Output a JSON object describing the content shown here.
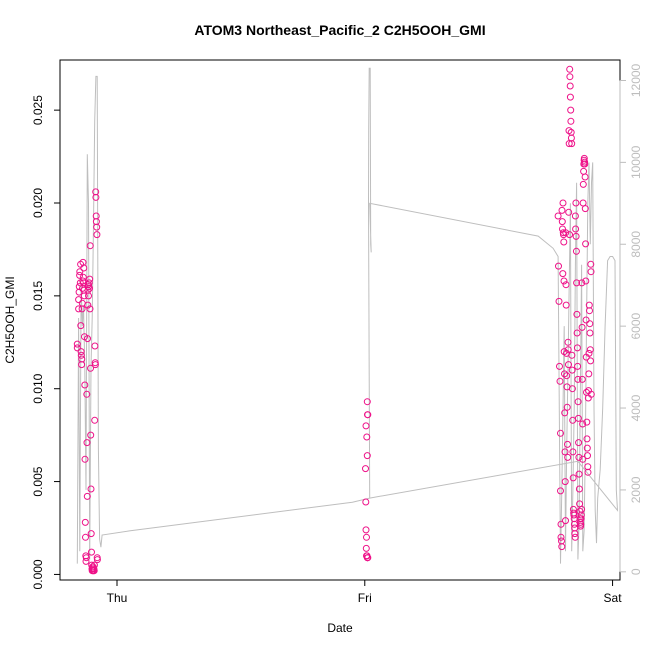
{
  "chart_data": {
    "type": "scatter",
    "title": "ATOM3 Northeast_Pacific_2 C2H5OOH_GMI",
    "xlabel": "Date",
    "ylabel": "C2H5OOH_GMI",
    "x_ticks": [
      "Thu",
      "Fri",
      "Sat"
    ],
    "x_tick_values": [
      0,
      1,
      2
    ],
    "xlim": [
      -0.23,
      2.03
    ],
    "ylim": [
      -0.0003,
      0.0277
    ],
    "y_ticks": [
      0.0,
      0.005,
      0.01,
      0.015,
      0.02,
      0.025
    ],
    "y_tick_labels": [
      "0.000",
      "0.005",
      "0.010",
      "0.015",
      "0.020",
      "0.025"
    ],
    "y2_ticks": [
      0,
      2000,
      4000,
      6000,
      8000,
      10000,
      12000
    ],
    "y2_tick_labels": [
      "0",
      "2000",
      "4000",
      "6000",
      "8000",
      "10000",
      "12000"
    ],
    "y2lim": [
      -200,
      12500
    ],
    "point_color": "#ee1289",
    "line_color": "#bebebe",
    "grid": false,
    "series": [
      {
        "values": [
          [
            -0.16,
            0.0122
          ],
          [
            -0.16,
            0.0124
          ],
          [
            -0.155,
            0.0143
          ],
          [
            -0.155,
            0.0148
          ],
          [
            -0.153,
            0.0152
          ],
          [
            -0.152,
            0.0155
          ],
          [
            -0.151,
            0.0161
          ],
          [
            -0.15,
            0.0163
          ],
          [
            -0.148,
            0.0157
          ],
          [
            -0.147,
            0.0167
          ],
          [
            -0.146,
            0.0134
          ],
          [
            -0.145,
            0.012
          ],
          [
            -0.144,
            0.0118
          ],
          [
            -0.143,
            0.0113
          ],
          [
            -0.142,
            0.0116
          ],
          [
            -0.141,
            0.0143
          ],
          [
            -0.14,
            0.0146
          ],
          [
            -0.139,
            0.0154
          ],
          [
            -0.138,
            0.0158
          ],
          [
            -0.137,
            0.0168
          ],
          [
            -0.136,
            0.016
          ],
          [
            -0.135,
            0.0157
          ],
          [
            -0.134,
            0.0165
          ],
          [
            -0.133,
            0.0153
          ],
          [
            -0.132,
            0.015
          ],
          [
            -0.131,
            0.0128
          ],
          [
            -0.13,
            0.0102
          ],
          [
            -0.129,
            0.0062
          ],
          [
            -0.128,
            0.0028
          ],
          [
            -0.127,
            0.002
          ],
          [
            -0.126,
            0.001
          ],
          [
            -0.125,
            0.0007
          ],
          [
            -0.124,
            0.0009
          ],
          [
            -0.122,
            0.0097
          ],
          [
            -0.121,
            0.0071
          ],
          [
            -0.12,
            0.0042
          ],
          [
            -0.119,
            0.0127
          ],
          [
            -0.118,
            0.0145
          ],
          [
            -0.117,
            0.0153
          ],
          [
            -0.116,
            0.0156
          ],
          [
            -0.115,
            0.015
          ],
          [
            -0.114,
            0.0155
          ],
          [
            -0.112,
            0.0157
          ],
          [
            -0.111,
            0.0154
          ],
          [
            -0.11,
            0.0159
          ],
          [
            -0.109,
            0.0143
          ],
          [
            -0.108,
            0.0177
          ],
          [
            -0.107,
            0.0111
          ],
          [
            -0.106,
            0.0075
          ],
          [
            -0.105,
            0.0046
          ],
          [
            -0.104,
            0.0022
          ],
          [
            -0.103,
            0.0012
          ],
          [
            -0.102,
            0.0005
          ],
          [
            -0.101,
            0.0003
          ],
          [
            -0.1,
            0.0002
          ],
          [
            -0.099,
            0.0004
          ],
          [
            -0.098,
            0.0003
          ],
          [
            -0.097,
            0.0002
          ],
          [
            -0.096,
            0.0004
          ],
          [
            -0.095,
            0.0003
          ],
          [
            -0.094,
            0.0002
          ],
          [
            -0.093,
            0.0003
          ],
          [
            -0.092,
            0.0002
          ],
          [
            -0.091,
            0.0005
          ],
          [
            -0.09,
            0.0083
          ],
          [
            -0.089,
            0.0123
          ],
          [
            -0.088,
            0.0114
          ],
          [
            -0.087,
            0.0113
          ],
          [
            -0.086,
            0.0206
          ],
          [
            -0.085,
            0.0203
          ],
          [
            -0.084,
            0.0193
          ],
          [
            -0.083,
            0.019
          ],
          [
            -0.082,
            0.0187
          ],
          [
            -0.081,
            0.0183
          ],
          [
            -0.08,
            0.0009
          ],
          [
            -0.079,
            0.0008
          ],
          [
            1.01,
            0.0093
          ],
          [
            1.011,
            0.0086
          ],
          [
            1.012,
            0.0086
          ],
          [
            1.005,
            0.008
          ],
          [
            1.008,
            0.0074
          ],
          [
            1.01,
            0.0064
          ],
          [
            1.003,
            0.0057
          ],
          [
            1.004,
            0.0039
          ],
          [
            1.005,
            0.0024
          ],
          [
            1.007,
            0.002
          ],
          [
            1.006,
            0.0014
          ],
          [
            1.007,
            0.001
          ],
          [
            1.008,
            0.001
          ],
          [
            1.009,
            0.001
          ],
          [
            1.01,
            0.0009
          ],
          [
            1.011,
            0.0009
          ],
          [
            1.012,
            0.0009
          ],
          [
            1.78,
            0.0193
          ],
          [
            1.782,
            0.0166
          ],
          [
            1.784,
            0.0147
          ],
          [
            1.786,
            0.0112
          ],
          [
            1.788,
            0.0104
          ],
          [
            1.79,
            0.0076
          ],
          [
            1.79,
            0.0045
          ],
          [
            1.792,
            0.0027
          ],
          [
            1.792,
            0.002
          ],
          [
            1.794,
            0.0018
          ],
          [
            1.795,
            0.0015
          ],
          [
            1.796,
            0.0196
          ],
          [
            1.797,
            0.019
          ],
          [
            1.798,
            0.0186
          ],
          [
            1.799,
            0.0162
          ],
          [
            1.8,
            0.02
          ],
          [
            1.801,
            0.0184
          ],
          [
            1.802,
            0.0183
          ],
          [
            1.803,
            0.0179
          ],
          [
            1.804,
            0.0158
          ],
          [
            1.805,
            0.012
          ],
          [
            1.806,
            0.0108
          ],
          [
            1.807,
            0.0087
          ],
          [
            1.808,
            0.0066
          ],
          [
            1.809,
            0.005
          ],
          [
            1.81,
            0.0029
          ],
          [
            1.811,
            0.0184
          ],
          [
            1.812,
            0.0156
          ],
          [
            1.813,
            0.0145
          ],
          [
            1.814,
            0.0119
          ],
          [
            1.815,
            0.0107
          ],
          [
            1.816,
            0.0101
          ],
          [
            1.817,
            0.009
          ],
          [
            1.818,
            0.007
          ],
          [
            1.819,
            0.0063
          ],
          [
            1.82,
            0.0125
          ],
          [
            1.821,
            0.0121
          ],
          [
            1.822,
            0.0113
          ],
          [
            1.823,
            0.0195
          ],
          [
            1.824,
            0.0239
          ],
          [
            1.825,
            0.0232
          ],
          [
            1.826,
            0.0183
          ],
          [
            1.827,
            0.0272
          ],
          [
            1.828,
            0.0268
          ],
          [
            1.829,
            0.0263
          ],
          [
            1.83,
            0.0257
          ],
          [
            1.831,
            0.025
          ],
          [
            1.832,
            0.0244
          ],
          [
            1.833,
            0.0238
          ],
          [
            1.834,
            0.0235
          ],
          [
            1.835,
            0.0232
          ],
          [
            1.836,
            0.0118
          ],
          [
            1.837,
            0.011
          ],
          [
            1.838,
            0.01
          ],
          [
            1.839,
            0.0083
          ],
          [
            1.84,
            0.0066
          ],
          [
            1.841,
            0.0052
          ],
          [
            1.842,
            0.0035
          ],
          [
            1.843,
            0.0033
          ],
          [
            1.844,
            0.0032
          ],
          [
            1.845,
            0.003
          ],
          [
            1.846,
            0.0027
          ],
          [
            1.847,
            0.0025
          ],
          [
            1.848,
            0.0022
          ],
          [
            1.849,
            0.002
          ],
          [
            1.85,
            0.0193
          ],
          [
            1.851,
            0.0186
          ],
          [
            1.852,
            0.02
          ],
          [
            1.853,
            0.0182
          ],
          [
            1.854,
            0.0174
          ],
          [
            1.855,
            0.0157
          ],
          [
            1.856,
            0.014
          ],
          [
            1.857,
            0.013
          ],
          [
            1.858,
            0.0122
          ],
          [
            1.859,
            0.0112
          ],
          [
            1.86,
            0.0105
          ],
          [
            1.861,
            0.0093
          ],
          [
            1.862,
            0.0084
          ],
          [
            1.863,
            0.0071
          ],
          [
            1.864,
            0.0063
          ],
          [
            1.865,
            0.0054
          ],
          [
            1.866,
            0.0046
          ],
          [
            1.867,
            0.0038
          ],
          [
            1.868,
            0.0034
          ],
          [
            1.869,
            0.003
          ],
          [
            1.87,
            0.0028
          ],
          [
            1.871,
            0.0026
          ],
          [
            1.872,
            0.0027
          ],
          [
            1.873,
            0.003
          ],
          [
            1.874,
            0.0032
          ],
          [
            1.875,
            0.0035
          ],
          [
            1.876,
            0.0157
          ],
          [
            1.877,
            0.0133
          ],
          [
            1.878,
            0.0105
          ],
          [
            1.879,
            0.0081
          ],
          [
            1.88,
            0.0062
          ],
          [
            1.881,
            0.02
          ],
          [
            1.882,
            0.021
          ],
          [
            1.883,
            0.0217
          ],
          [
            1.884,
            0.0221
          ],
          [
            1.885,
            0.0223
          ],
          [
            1.886,
            0.0224
          ],
          [
            1.887,
            0.0222
          ],
          [
            1.888,
            0.0221
          ],
          [
            1.889,
            0.0214
          ],
          [
            1.89,
            0.0197
          ],
          [
            1.891,
            0.0178
          ],
          [
            1.892,
            0.0158
          ],
          [
            1.893,
            0.0137
          ],
          [
            1.894,
            0.0117
          ],
          [
            1.895,
            0.0098
          ],
          [
            1.896,
            0.0082
          ],
          [
            1.897,
            0.0073
          ],
          [
            1.898,
            0.0068
          ],
          [
            1.899,
            0.0064
          ],
          [
            1.9,
            0.0058
          ],
          [
            1.901,
            0.0055
          ],
          [
            1.902,
            0.0095
          ],
          [
            1.903,
            0.0099
          ],
          [
            1.904,
            0.0108
          ],
          [
            1.905,
            0.0119
          ],
          [
            1.906,
            0.0145
          ],
          [
            1.907,
            0.0142
          ],
          [
            1.908,
            0.0135
          ],
          [
            1.909,
            0.013
          ],
          [
            1.91,
            0.0121
          ],
          [
            1.911,
            0.0115
          ],
          [
            1.912,
            0.0167
          ],
          [
            1.913,
            0.0163
          ],
          [
            1.914,
            0.0097
          ]
        ]
      }
    ],
    "line_series": {
      "axis": "right",
      "values": [
        [
          -0.16,
          200
        ],
        [
          -0.155,
          6200
        ],
        [
          -0.15,
          500
        ],
        [
          -0.145,
          7000
        ],
        [
          -0.14,
          6000
        ],
        [
          -0.135,
          6500
        ],
        [
          -0.13,
          5000
        ],
        [
          -0.125,
          2000
        ],
        [
          -0.12,
          10200
        ],
        [
          -0.115,
          9000
        ],
        [
          -0.11,
          300
        ],
        [
          -0.105,
          5000
        ],
        [
          -0.1,
          6200
        ],
        [
          -0.095,
          8500
        ],
        [
          -0.09,
          11000
        ],
        [
          -0.085,
          12100
        ],
        [
          -0.08,
          12100
        ],
        [
          -0.075,
          3000
        ],
        [
          -0.07,
          800
        ],
        [
          -0.065,
          600
        ],
        [
          -0.06,
          900
        ],
        [
          0.05,
          1000
        ],
        [
          0.95,
          1700
        ],
        [
          1.02,
          1800
        ],
        [
          1.015,
          9000
        ],
        [
          1.016,
          10800
        ],
        [
          1.018,
          12300
        ],
        [
          1.02,
          12300
        ],
        [
          1.022,
          12300
        ],
        [
          1.024,
          8000
        ],
        [
          1.026,
          7800
        ],
        [
          1.02,
          9000
        ],
        [
          1.7,
          8200
        ],
        [
          1.76,
          7900
        ],
        [
          1.78,
          7700
        ],
        [
          1.79,
          200
        ],
        [
          1.795,
          2000
        ],
        [
          1.8,
          4000
        ],
        [
          1.805,
          6000
        ],
        [
          1.81,
          500
        ],
        [
          1.815,
          3000
        ],
        [
          1.82,
          5000
        ],
        [
          1.825,
          7000
        ],
        [
          1.83,
          9000
        ],
        [
          1.835,
          500
        ],
        [
          1.84,
          2000
        ],
        [
          1.845,
          4000
        ],
        [
          1.85,
          7500
        ],
        [
          1.855,
          9500
        ],
        [
          1.86,
          300
        ],
        [
          1.865,
          1200
        ],
        [
          1.87,
          4500
        ],
        [
          1.875,
          7500
        ],
        [
          1.88,
          500
        ],
        [
          1.885,
          1000
        ],
        [
          1.89,
          3000
        ],
        [
          1.895,
          6000
        ],
        [
          1.9,
          9000
        ],
        [
          1.905,
          10000
        ],
        [
          1.91,
          8000
        ],
        [
          1.915,
          9500
        ],
        [
          1.92,
          10000
        ],
        [
          1.925,
          4000
        ],
        [
          1.93,
          1500
        ],
        [
          1.935,
          700
        ],
        [
          1.94,
          1800
        ],
        [
          1.95,
          2500
        ],
        [
          1.96,
          4000
        ],
        [
          1.97,
          6000
        ],
        [
          1.98,
          7600
        ],
        [
          1.99,
          7700
        ],
        [
          2.0,
          7700
        ],
        [
          2.01,
          7600
        ],
        [
          2.015,
          2000
        ],
        [
          2.02,
          1500
        ],
        [
          1.86,
          2700
        ],
        [
          1.02,
          1800
        ]
      ]
    }
  }
}
